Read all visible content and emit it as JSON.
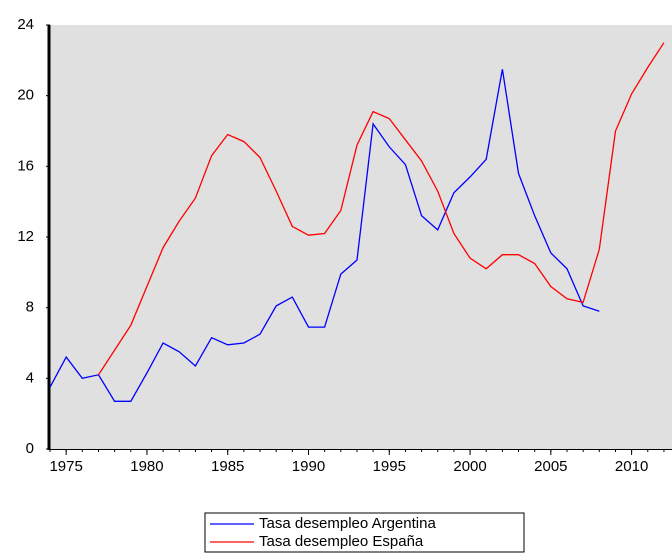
{
  "chart_data": {
    "type": "line",
    "x": [
      1974,
      1975,
      1976,
      1977,
      1978,
      1979,
      1980,
      1981,
      1982,
      1983,
      1984,
      1985,
      1986,
      1987,
      1988,
      1989,
      1990,
      1991,
      1992,
      1993,
      1994,
      1995,
      1996,
      1997,
      1998,
      1999,
      2000,
      2001,
      2002,
      2003,
      2004,
      2005,
      2006,
      2007,
      2008,
      2009,
      2010,
      2011,
      2012
    ],
    "series": [
      {
        "name": "Tasa desempleo Argentina",
        "color": "#0000ff",
        "values": [
          3.5,
          5.2,
          4.0,
          4.2,
          2.7,
          2.7,
          4.3,
          6.0,
          5.5,
          4.7,
          6.3,
          5.9,
          6.0,
          6.5,
          8.1,
          8.6,
          6.9,
          6.9,
          9.9,
          10.7,
          18.4,
          17.1,
          16.1,
          13.2,
          12.4,
          14.5,
          15.4,
          16.4,
          21.5,
          15.6,
          13.2,
          11.1,
          10.2,
          8.1,
          7.8,
          null,
          null,
          null,
          null
        ]
      },
      {
        "name": "Tasa desempleo España",
        "color": "#ff0000",
        "values": [
          null,
          null,
          null,
          4.2,
          5.6,
          7.0,
          9.2,
          11.4,
          12.9,
          14.2,
          16.6,
          17.8,
          17.4,
          16.5,
          14.6,
          12.6,
          12.1,
          12.2,
          13.5,
          17.2,
          19.1,
          18.7,
          17.5,
          16.3,
          14.6,
          12.2,
          10.8,
          10.2,
          11.0,
          11.0,
          10.5,
          9.2,
          8.5,
          8.3,
          11.3,
          18.0,
          20.1,
          21.6,
          23.0
        ]
      }
    ],
    "xlim": [
      1974,
      2012.5
    ],
    "xticks": [
      1975,
      1980,
      1985,
      1990,
      1995,
      2000,
      2005,
      2010
    ],
    "ylim": [
      0,
      24
    ],
    "yticks": [
      0,
      4,
      8,
      12,
      16,
      20,
      24
    ],
    "background": "#e0e0e0"
  }
}
